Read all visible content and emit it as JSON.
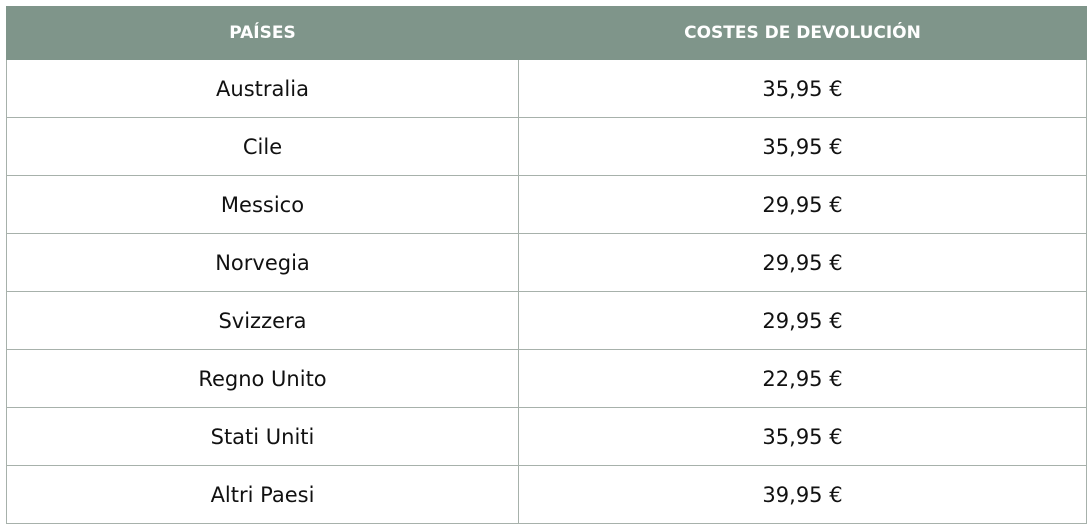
{
  "table": {
    "header": [
      "PAÍSES",
      "COSTES DE DEVOLUCIÓN"
    ],
    "rows": [
      [
        "Australia",
        "35,95 €"
      ],
      [
        "Cile",
        "35,95 €"
      ],
      [
        "Messico",
        "29,95 €"
      ],
      [
        "Norvegia",
        "29,95 €"
      ],
      [
        "Svizzera",
        "29,95 €"
      ],
      [
        "Regno Unito",
        "22,95 €"
      ],
      [
        "Stati Uniti",
        "35,95 €"
      ],
      [
        "Altri Paesi",
        "39,95 €"
      ]
    ]
  }
}
